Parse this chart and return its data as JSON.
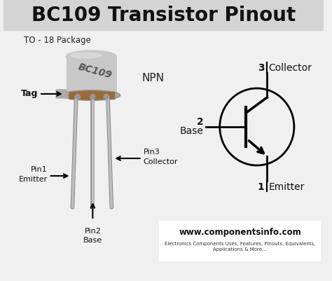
{
  "title": "BC109 Transistor Pinout",
  "title_bg_color": "#d4d4d4",
  "body_bg_color": "#f0f0f0",
  "package_label": "TO - 18 Package",
  "npn_label": "NPN",
  "bc109_label": "BC109",
  "tag_label": "Tag",
  "pin1_label": "Pin1\nEmitter",
  "pin2_label": "Pin2\nBase",
  "pin3_label": "Pin3\nCollector",
  "collector_label": "Collector",
  "base_label": "Base",
  "emitter_label": "Emitter",
  "num1": "1",
  "num2": "2",
  "num3": "3",
  "website": "www.componentsinfo.com",
  "website_sub": "Electronics Components Uses, Features, Pinouts, Equivalents,\nApplications & More...",
  "can_color": "#c8c8c8",
  "can_dark": "#999999",
  "can_rim_color": "#aaaaaa",
  "brown_color": "#9b6a3a",
  "pin_color": "#c0c0c0",
  "pin_shadow": "#888888"
}
